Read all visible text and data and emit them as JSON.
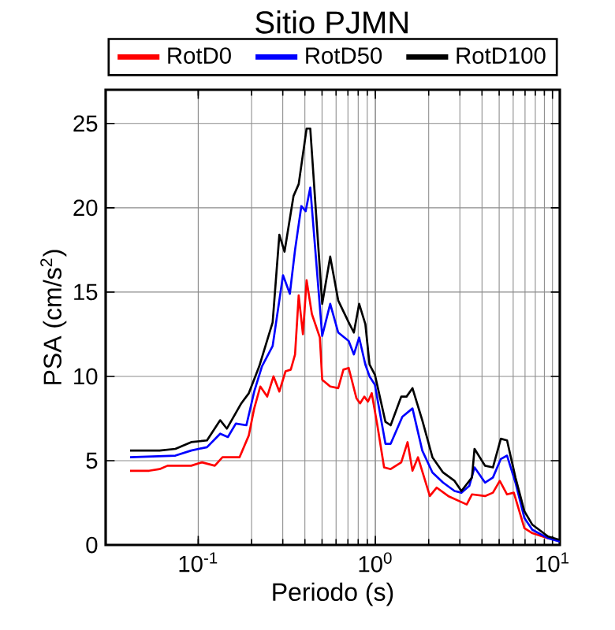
{
  "chart_data": {
    "type": "line",
    "title": "Sitio PJMN",
    "xlabel": "Periodo (s)",
    "ylabel": "PSA (cm/s$^{2}$)",
    "log": "x",
    "grid": true,
    "legend": "top",
    "line_style": "solid",
    "marker": "none",
    "xlim": [
      0.03,
      11
    ],
    "ylim": [
      0,
      27
    ],
    "xticks": [
      {
        "value": 0.1,
        "label": "10$^{-1}$"
      },
      {
        "value": 1,
        "label": "10$^{0}$"
      },
      {
        "value": 10,
        "label": "10$^{1}$"
      }
    ],
    "yticks": [
      0,
      5,
      10,
      15,
      20,
      25
    ],
    "series": [
      {
        "name": "RotD0",
        "color": "#ff0000",
        "x": [
          0.0412,
          0.0528,
          0.0605,
          0.0671,
          0.0824,
          0.0912,
          0.105,
          0.124,
          0.137,
          0.171,
          0.193,
          0.207,
          0.224,
          0.245,
          0.266,
          0.287,
          0.311,
          0.333,
          0.352,
          0.369,
          0.39,
          0.409,
          0.438,
          0.486,
          0.501,
          0.556,
          0.617,
          0.66,
          0.707,
          0.782,
          0.82,
          0.866,
          0.908,
          0.954,
          1.03,
          1.12,
          1.22,
          1.4,
          1.52,
          1.62,
          1.74,
          2.03,
          2.22,
          2.58,
          3.28,
          3.51,
          4.16,
          4.61,
          5.04,
          5.54,
          6.05,
          6.94,
          7.7,
          9.44
        ],
        "values": [
          4.4,
          4.4,
          4.5,
          4.7,
          4.7,
          4.7,
          4.9,
          4.7,
          5.2,
          5.2,
          6.5,
          8.1,
          9.4,
          8.8,
          10.0,
          9.1,
          10.3,
          10.4,
          11.3,
          14.8,
          12.5,
          15.7,
          13.7,
          12.3,
          9.8,
          9.4,
          9.3,
          10.4,
          10.5,
          8.7,
          8.4,
          8.8,
          8.5,
          9.0,
          7.0,
          4.6,
          4.5,
          4.9,
          6.1,
          4.4,
          5.2,
          2.9,
          3.4,
          2.9,
          2.4,
          3.0,
          2.9,
          3.1,
          3.8,
          3.0,
          3.1,
          1.0,
          0.7,
          0.4
        ]
      },
      {
        "name": "RotD50",
        "color": "#0000ff",
        "x": [
          0.0412,
          0.0743,
          0.0912,
          0.112,
          0.133,
          0.147,
          0.163,
          0.187,
          0.207,
          0.229,
          0.263,
          0.301,
          0.329,
          0.352,
          0.382,
          0.404,
          0.429,
          0.501,
          0.556,
          0.617,
          0.707,
          0.756,
          0.81,
          0.878,
          0.927,
          0.994,
          1.14,
          1.22,
          1.42,
          1.62,
          1.84,
          2.1,
          2.41,
          2.8,
          3.06,
          3.39,
          3.63,
          4.16,
          4.61,
          5.11,
          5.54,
          6.18,
          6.94,
          7.7,
          9.44,
          11.0
        ],
        "values": [
          5.2,
          5.3,
          5.6,
          5.8,
          6.6,
          6.4,
          7.2,
          7.1,
          9.1,
          10.6,
          11.8,
          16.0,
          14.9,
          17.5,
          20.1,
          19.8,
          21.2,
          12.4,
          14.3,
          12.6,
          12.1,
          11.3,
          12.3,
          10.7,
          10.0,
          9.5,
          6.0,
          6.0,
          7.6,
          8.1,
          5.6,
          4.3,
          3.7,
          3.2,
          3.1,
          3.5,
          4.6,
          3.7,
          4.0,
          5.1,
          5.3,
          3.7,
          1.6,
          0.9,
          0.4,
          0.2
        ]
      },
      {
        "name": "RotD100",
        "color": "#000000",
        "x": [
          0.0412,
          0.0605,
          0.0743,
          0.0912,
          0.112,
          0.133,
          0.145,
          0.175,
          0.193,
          0.221,
          0.263,
          0.287,
          0.307,
          0.345,
          0.369,
          0.409,
          0.429,
          0.501,
          0.556,
          0.617,
          0.707,
          0.756,
          0.81,
          0.878,
          0.927,
          0.994,
          1.14,
          1.22,
          1.4,
          1.5,
          1.62,
          1.84,
          2.1,
          2.41,
          2.8,
          3.06,
          3.51,
          3.63,
          4.16,
          4.61,
          5.11,
          5.54,
          6.18,
          6.94,
          7.7,
          9.44,
          11.0
        ],
        "values": [
          5.6,
          5.6,
          5.7,
          6.1,
          6.2,
          7.4,
          6.9,
          8.4,
          9.0,
          10.6,
          13.2,
          18.4,
          17.4,
          20.7,
          21.4,
          24.7,
          24.7,
          14.3,
          17.1,
          14.5,
          13.2,
          12.6,
          14.3,
          13.1,
          10.7,
          10.1,
          7.3,
          7.1,
          8.8,
          8.8,
          9.3,
          7.4,
          5.2,
          4.3,
          3.8,
          3.2,
          4.0,
          5.7,
          4.7,
          4.6,
          6.3,
          6.2,
          4.0,
          2.0,
          1.2,
          0.5,
          0.3
        ]
      }
    ]
  }
}
